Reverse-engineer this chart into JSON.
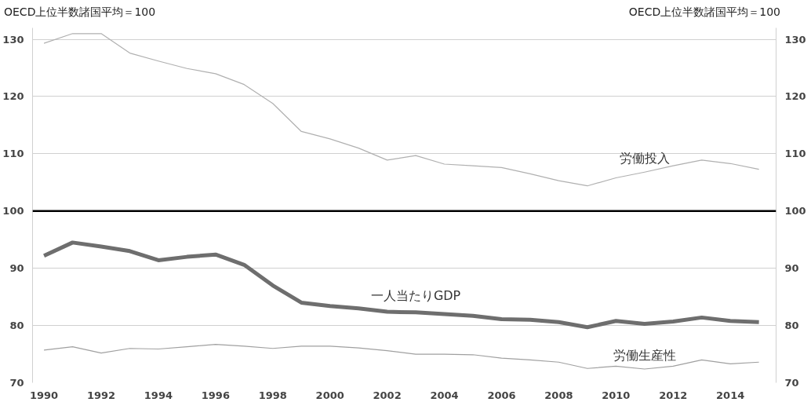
{
  "chart_data": {
    "type": "line",
    "ylabel": "OECD上位半数諸国平均＝100",
    "y2label": "OECD上位半数諸国平均＝100",
    "x": [
      1990,
      1991,
      1992,
      1993,
      1994,
      1995,
      1996,
      1997,
      1998,
      1999,
      2000,
      2001,
      2002,
      2003,
      2004,
      2005,
      2006,
      2007,
      2008,
      2009,
      2010,
      2011,
      2012,
      2013,
      2014,
      2015
    ],
    "series": [
      {
        "name": "労働投入",
        "color": "#b0b0b0",
        "values": [
          129.3,
          131,
          131,
          127.6,
          126.2,
          124.9,
          124,
          122.1,
          118.8,
          113.9,
          112.6,
          111,
          108.9,
          109.7,
          108.2,
          107.9,
          107.6,
          106.5,
          105.3,
          104.4,
          105.8,
          106.8,
          107.9,
          108.9,
          108.3,
          107.3
        ]
      },
      {
        "name": "一人当たりGDP",
        "color": "#6e6e6e",
        "values": [
          92.2,
          94.5,
          93.8,
          93,
          91.4,
          92,
          92.4,
          90.6,
          87,
          84,
          83.4,
          83,
          82.4,
          82.3,
          82,
          81.7,
          81.1,
          81,
          80.6,
          79.7,
          80.8,
          80.3,
          80.7,
          81.4,
          80.8,
          80.6
        ]
      },
      {
        "name": "労働生産性",
        "color": "#a0a0a0",
        "values": [
          75.7,
          76.3,
          75.2,
          76,
          75.9,
          76.3,
          76.7,
          76.4,
          76,
          76.4,
          76.4,
          76.1,
          75.6,
          75,
          75,
          74.9,
          74.3,
          74,
          73.6,
          72.5,
          72.9,
          72.4,
          72.9,
          74,
          73.3,
          73.6
        ]
      }
    ],
    "xlim": [
      1989.6,
      2015.6
    ],
    "xticks": [
      1990,
      1992,
      1994,
      1996,
      1998,
      2000,
      2002,
      2004,
      2006,
      2008,
      2010,
      2012,
      2014
    ],
    "ylim": [
      70,
      132
    ],
    "yticks": [
      70,
      80,
      90,
      100,
      110,
      120,
      130
    ],
    "y2lim": [
      70,
      132
    ],
    "y2ticks": [
      70,
      80,
      90,
      100,
      110,
      120,
      130
    ],
    "ref_lines": [
      {
        "axis": "y",
        "value": 100,
        "color": "#000000"
      }
    ],
    "grid": "y",
    "marker": "none",
    "line_style": "solid"
  }
}
